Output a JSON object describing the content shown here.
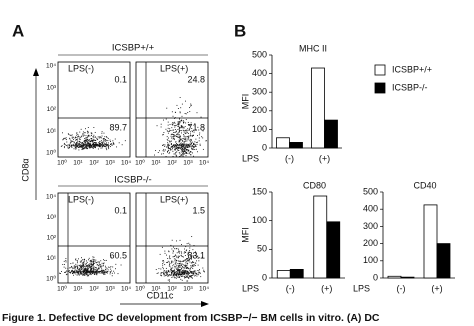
{
  "panel_a": {
    "label": "A",
    "groups": [
      "ICSBP+/+",
      "ICSBP-/-"
    ],
    "conditions": [
      "LPS(-)",
      "LPS(+)"
    ],
    "quadrants": [
      [
        "0.1",
        "89.7"
      ],
      [
        "24.8",
        "71.8"
      ],
      [
        "0.1",
        "60.5"
      ],
      [
        "1.5",
        "83.1"
      ]
    ],
    "y_axis_label": "CD8α",
    "x_axis_label": "CD11c",
    "axis_ticks": [
      "10⁰",
      "10¹",
      "10²",
      "10³",
      "10⁴"
    ]
  },
  "panel_b_label": "B",
  "chart_data": [
    {
      "type": "bar",
      "title": "MHC II",
      "y_label": "MFI",
      "x_label": "LPS",
      "categories": [
        "(-)",
        "(+)"
      ],
      "series": [
        {
          "name": "ICSBP+/+",
          "color": "#ffffff",
          "values": [
            55,
            430
          ]
        },
        {
          "name": "ICSBP-/-",
          "color": "#000000",
          "values": [
            30,
            150
          ]
        }
      ],
      "ylim": [
        0,
        500
      ],
      "yticks": [
        0,
        100,
        200,
        300,
        400,
        500
      ]
    },
    {
      "type": "bar",
      "title": "CD80",
      "y_label": "MFI",
      "x_label": "LPS",
      "categories": [
        "(-)",
        "(+)"
      ],
      "series": [
        {
          "color": "#ffffff",
          "values": [
            13,
            143
          ]
        },
        {
          "color": "#000000",
          "values": [
            15,
            98
          ]
        }
      ],
      "ylim": [
        0,
        150
      ],
      "yticks": [
        0,
        50,
        100,
        150
      ]
    },
    {
      "type": "bar",
      "title": "CD40",
      "x_label": "LPS",
      "categories": [
        "(-)",
        "(+)"
      ],
      "series": [
        {
          "color": "#ffffff",
          "values": [
            10,
            425
          ]
        },
        {
          "color": "#000000",
          "values": [
            5,
            200
          ]
        }
      ],
      "ylim": [
        0,
        500
      ],
      "yticks": [
        0,
        100,
        200,
        300,
        400,
        500
      ]
    }
  ],
  "caption": "Figure 1. Defective DC development from ICSBP−/− BM cells in vitro. (A) DC"
}
